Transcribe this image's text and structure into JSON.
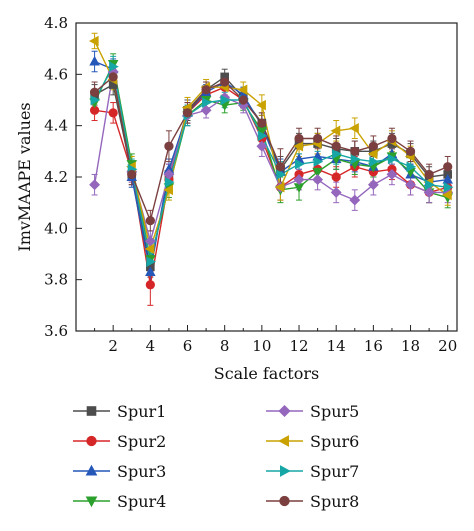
{
  "chart_data": {
    "type": "line",
    "title": "",
    "xlabel": "Scale factors",
    "ylabel": "ImvMAAPE values",
    "xlim": [
      0,
      20.5
    ],
    "ylim": [
      3.6,
      4.8
    ],
    "xticks": [
      2,
      4,
      6,
      8,
      10,
      12,
      14,
      16,
      18,
      20
    ],
    "yticks": [
      3.6,
      3.8,
      4.0,
      4.2,
      4.4,
      4.6,
      4.8
    ],
    "ytick_labels": [
      "3.6",
      "3.8",
      "4.0",
      "4.2",
      "4.4",
      "4.6",
      "4.8"
    ],
    "grid": false,
    "legend_position": "bottom",
    "x": [
      1,
      2,
      3,
      4,
      5,
      6,
      7,
      8,
      9,
      10,
      11,
      12,
      13,
      14,
      15,
      16,
      17,
      18,
      19,
      20
    ],
    "series": [
      {
        "name": "Spur1",
        "color": "#4d4d4d",
        "marker": "square",
        "values": [
          4.52,
          4.56,
          4.21,
          3.85,
          4.21,
          4.46,
          4.54,
          4.59,
          4.51,
          4.41,
          4.23,
          4.33,
          4.33,
          4.31,
          4.3,
          4.3,
          4.33,
          4.29,
          4.2,
          4.21
        ],
        "errors": [
          0.04,
          0.04,
          0.04,
          0.04,
          0.04,
          0.04,
          0.03,
          0.03,
          0.03,
          0.04,
          0.05,
          0.04,
          0.04,
          0.04,
          0.04,
          0.04,
          0.04,
          0.04,
          0.04,
          0.04
        ]
      },
      {
        "name": "Spur2",
        "color": "#d62728",
        "marker": "circle",
        "values": [
          4.46,
          4.45,
          4.22,
          3.78,
          4.19,
          4.45,
          4.52,
          4.55,
          4.5,
          4.35,
          4.16,
          4.21,
          4.23,
          4.2,
          4.24,
          4.22,
          4.23,
          4.17,
          4.14,
          4.16
        ],
        "errors": [
          0.04,
          0.04,
          0.04,
          0.08,
          0.04,
          0.04,
          0.03,
          0.03,
          0.03,
          0.04,
          0.05,
          0.04,
          0.04,
          0.04,
          0.04,
          0.04,
          0.04,
          0.04,
          0.04,
          0.04
        ]
      },
      {
        "name": "Spur3",
        "color": "#2457b8",
        "marker": "triangle-up",
        "values": [
          4.65,
          4.62,
          4.2,
          3.83,
          4.23,
          4.45,
          4.53,
          4.57,
          4.52,
          4.4,
          4.22,
          4.27,
          4.28,
          4.27,
          4.26,
          4.24,
          4.29,
          4.21,
          4.18,
          4.19
        ],
        "errors": [
          0.04,
          0.04,
          0.04,
          0.04,
          0.04,
          0.04,
          0.03,
          0.03,
          0.03,
          0.04,
          0.05,
          0.04,
          0.04,
          0.04,
          0.04,
          0.04,
          0.04,
          0.04,
          0.04,
          0.04
        ]
      },
      {
        "name": "Spur4",
        "color": "#2ca02c",
        "marker": "triangle-down",
        "values": [
          4.49,
          4.64,
          4.25,
          3.88,
          4.16,
          4.44,
          4.5,
          4.48,
          4.49,
          4.38,
          4.15,
          4.16,
          4.22,
          4.27,
          4.25,
          4.24,
          4.28,
          4.22,
          4.14,
          4.12
        ],
        "errors": [
          0.04,
          0.04,
          0.04,
          0.04,
          0.04,
          0.04,
          0.03,
          0.03,
          0.03,
          0.04,
          0.05,
          0.05,
          0.04,
          0.04,
          0.04,
          0.04,
          0.04,
          0.04,
          0.04,
          0.04
        ]
      },
      {
        "name": "Spur5",
        "color": "#9467bd",
        "marker": "diamond",
        "values": [
          4.17,
          4.61,
          4.22,
          3.95,
          4.21,
          4.44,
          4.46,
          4.51,
          4.48,
          4.32,
          4.16,
          4.19,
          4.19,
          4.14,
          4.11,
          4.17,
          4.21,
          4.17,
          4.14,
          4.14
        ],
        "errors": [
          0.04,
          0.04,
          0.04,
          0.04,
          0.04,
          0.04,
          0.03,
          0.03,
          0.03,
          0.04,
          0.05,
          0.04,
          0.04,
          0.04,
          0.04,
          0.04,
          0.04,
          0.04,
          0.04,
          0.04
        ]
      },
      {
        "name": "Spur6",
        "color": "#c9a200",
        "marker": "triangle-left",
        "values": [
          4.73,
          4.58,
          4.24,
          3.92,
          4.15,
          4.47,
          4.55,
          4.55,
          4.54,
          4.48,
          4.16,
          4.32,
          4.33,
          4.38,
          4.39,
          4.29,
          4.34,
          4.28,
          4.18,
          4.13
        ],
        "errors": [
          0.03,
          0.04,
          0.04,
          0.04,
          0.04,
          0.04,
          0.03,
          0.03,
          0.03,
          0.04,
          0.05,
          0.04,
          0.04,
          0.04,
          0.04,
          0.04,
          0.04,
          0.04,
          0.04,
          0.04
        ]
      },
      {
        "name": "Spur7",
        "color": "#17a6a6",
        "marker": "triangle-right",
        "values": [
          4.5,
          4.63,
          4.23,
          3.87,
          4.18,
          4.44,
          4.49,
          4.5,
          4.5,
          4.36,
          4.21,
          4.25,
          4.26,
          4.29,
          4.27,
          4.26,
          4.27,
          4.24,
          4.17,
          4.16
        ],
        "errors": [
          0.04,
          0.04,
          0.04,
          0.04,
          0.04,
          0.04,
          0.03,
          0.03,
          0.03,
          0.04,
          0.05,
          0.04,
          0.04,
          0.04,
          0.04,
          0.04,
          0.04,
          0.04,
          0.04,
          0.04
        ]
      },
      {
        "name": "Spur8",
        "color": "#7b3f3f",
        "marker": "hexagon",
        "values": [
          4.53,
          4.59,
          4.21,
          4.03,
          4.32,
          4.45,
          4.54,
          4.57,
          4.5,
          4.41,
          4.24,
          4.35,
          4.35,
          4.32,
          4.3,
          4.32,
          4.35,
          4.3,
          4.21,
          4.24
        ],
        "errors": [
          0.04,
          0.04,
          0.04,
          0.04,
          0.06,
          0.04,
          0.03,
          0.03,
          0.03,
          0.04,
          0.07,
          0.04,
          0.04,
          0.04,
          0.04,
          0.04,
          0.04,
          0.04,
          0.04,
          0.04
        ]
      }
    ]
  }
}
